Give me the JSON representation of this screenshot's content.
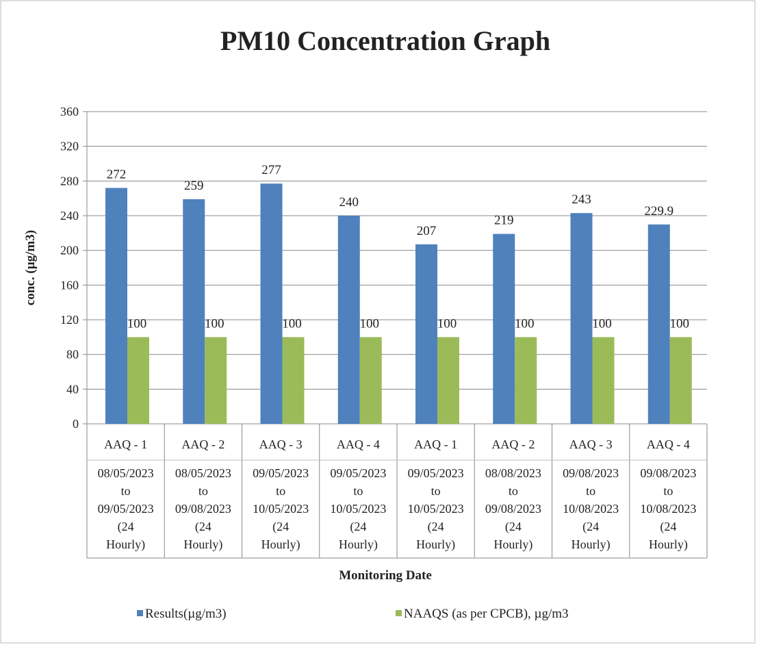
{
  "chart_data": {
    "type": "bar",
    "title": "PM10 Concentration Graph",
    "ylabel": "conc. (µg/m3)",
    "xlabel": "Monitoring Date",
    "categories": [
      "AAQ - 1",
      "AAQ - 2",
      "AAQ - 3",
      "AAQ - 4",
      "AAQ - 1",
      "AAQ - 2",
      "AAQ - 3",
      "AAQ - 4"
    ],
    "date_lines": [
      [
        "08/05/2023",
        "to",
        "09/05/2023",
        "(24",
        "Hourly)"
      ],
      [
        "08/05/2023",
        "to",
        "09/08/2023",
        "(24",
        "Hourly)"
      ],
      [
        "09/05/2023",
        "to",
        "10/05/2023",
        "(24",
        "Hourly)"
      ],
      [
        "09/05/2023",
        "to",
        "10/05/2023",
        "(24",
        "Hourly)"
      ],
      [
        "09/05/2023",
        "to",
        "10/05/2023",
        "(24",
        "Hourly)"
      ],
      [
        "08/08/2023",
        "to",
        "09/08/2023",
        "(24",
        "Hourly)"
      ],
      [
        "09/08/2023",
        "to",
        "10/08/2023",
        "(24",
        "Hourly)"
      ],
      [
        "09/08/2023",
        "to",
        "10/08/2023",
        "(24",
        "Hourly)"
      ]
    ],
    "series": [
      {
        "name": "Results(µg/m3)",
        "color": "#4f81bd",
        "values": [
          272,
          259,
          277,
          240,
          207,
          219,
          243,
          229.9
        ]
      },
      {
        "name": "NAAQS (as per CPCB), µg/m3",
        "color": "#9bbb59",
        "values": [
          100,
          100,
          100,
          100,
          100,
          100,
          100,
          100
        ]
      }
    ],
    "ylim": [
      0,
      360
    ],
    "yticks": [
      0,
      40,
      80,
      120,
      160,
      200,
      240,
      280,
      320,
      360
    ],
    "grid": true,
    "legend": "bottom"
  }
}
